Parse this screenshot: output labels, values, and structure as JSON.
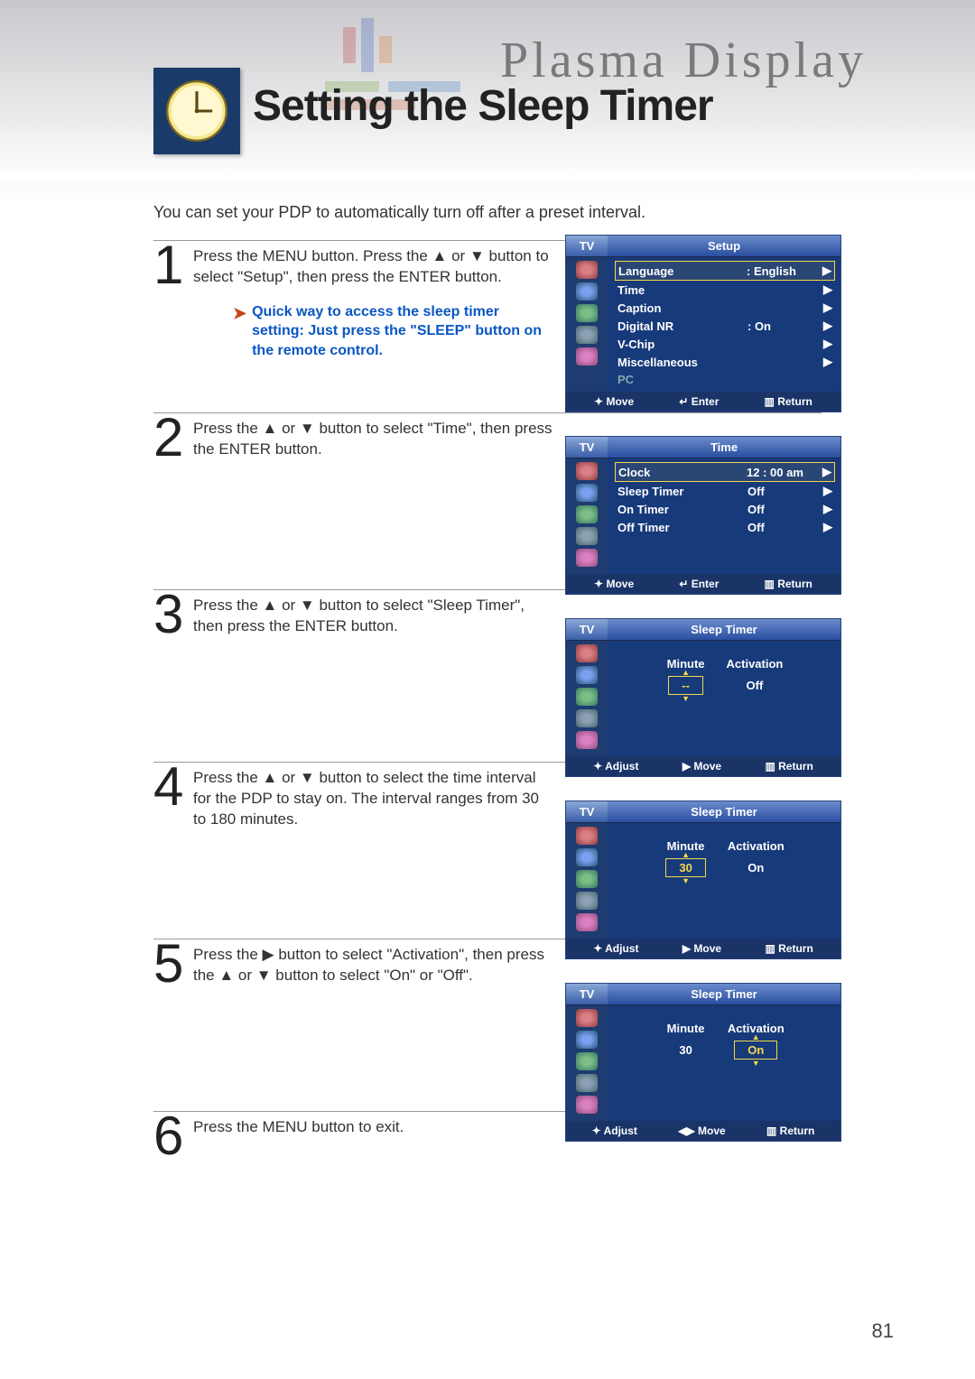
{
  "brand": "Plasma Display",
  "page_title": "Setting the Sleep Timer",
  "intro": "You can set your PDP to automatically turn off after a preset interval.",
  "page_number": "81",
  "steps": [
    {
      "num": "1",
      "text": "Press the MENU button. Press the ▲ or ▼ button to select \"Setup\", then press the ENTER button."
    },
    {
      "num": "2",
      "text": "Press the ▲ or ▼ button to select \"Time\", then press the ENTER button."
    },
    {
      "num": "3",
      "text": "Press the ▲ or ▼ button to select \"Sleep Timer\", then press the ENTER button."
    },
    {
      "num": "4",
      "text": "Press the ▲ or ▼ button to select the time interval for the PDP to stay on. The interval ranges from 30 to 180 minutes."
    },
    {
      "num": "5",
      "text": "Press the ▶ button to select \"Activation\", then press the ▲ or ▼ button to select \"On\" or \"Off\"."
    },
    {
      "num": "6",
      "text": "Press the MENU button to exit."
    }
  ],
  "hint": "Quick way to access the sleep timer setting: Just press the \"SLEEP\" button on the remote control.",
  "tv_label": "TV",
  "sections": {
    "setup": {
      "title": "Setup",
      "rows": [
        {
          "label": "Language",
          "value": ": English",
          "arrow": "▶",
          "focus": true
        },
        {
          "label": "Time",
          "value": "",
          "arrow": "▶"
        },
        {
          "label": "Caption",
          "value": "",
          "arrow": "▶"
        },
        {
          "label": "Digital NR",
          "value": ": On",
          "arrow": "▶"
        },
        {
          "label": "V-Chip",
          "value": "",
          "arrow": "▶"
        },
        {
          "label": "Miscellaneous",
          "value": "",
          "arrow": "▶"
        },
        {
          "label": "PC",
          "value": "",
          "arrow": "",
          "dim": true
        }
      ],
      "footer": [
        "✦ Move",
        "↵ Enter",
        "▥ Return"
      ]
    },
    "time": {
      "title": "Time",
      "rows": [
        {
          "label": "Clock",
          "value": "12 : 00 am",
          "arrow": "▶",
          "focus": true
        },
        {
          "label": "Sleep Timer",
          "value": "Off",
          "arrow": "▶"
        },
        {
          "label": "On Timer",
          "value": "Off",
          "arrow": "▶"
        },
        {
          "label": "Off Timer",
          "value": "Off",
          "arrow": "▶"
        }
      ],
      "footer": [
        "✦ Move",
        "↵ Enter",
        "▥ Return"
      ]
    },
    "sleep1": {
      "title": "Sleep Timer",
      "minute_label": "Minute",
      "activation_label": "Activation",
      "minute": "--",
      "activation": "Off",
      "minute_focus": true,
      "activation_focus": false,
      "footer": [
        "✦ Adjust",
        "▶ Move",
        "▥ Return"
      ]
    },
    "sleep2": {
      "title": "Sleep Timer",
      "minute_label": "Minute",
      "activation_label": "Activation",
      "minute": "30",
      "activation": "On",
      "minute_focus": true,
      "activation_focus": false,
      "footer": [
        "✦ Adjust",
        "▶ Move",
        "▥ Return"
      ]
    },
    "sleep3": {
      "title": "Sleep Timer",
      "minute_label": "Minute",
      "activation_label": "Activation",
      "minute": "30",
      "activation": "On",
      "minute_focus": false,
      "activation_focus": true,
      "footer": [
        "✦ Adjust",
        "◀▶ Move",
        "▥ Return"
      ]
    }
  },
  "colors": {
    "title_blue": "#173a7a",
    "focus_yellow": "#f6d84a",
    "hint_blue": "#0a56c4"
  }
}
